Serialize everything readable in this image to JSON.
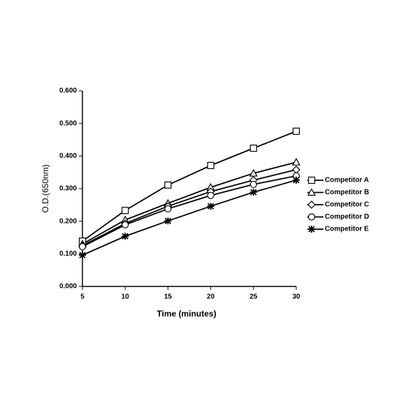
{
  "chart_data": {
    "type": "line",
    "x_label": "Time (minutes)",
    "y_label": "O.D.(650nm)",
    "x": [
      5,
      10,
      15,
      20,
      25,
      30
    ],
    "xlim": [
      5,
      30
    ],
    "xticks": [
      5,
      10,
      15,
      20,
      25,
      30
    ],
    "ylim": [
      0,
      0.6
    ],
    "yticks": [
      {
        "value": 0,
        "label": "0.000"
      },
      {
        "value": 0.1,
        "label": "0.100"
      },
      {
        "value": 0.2,
        "label": "0.200"
      },
      {
        "value": 0.3,
        "label": "0.300"
      },
      {
        "value": 0.4,
        "label": "0.400"
      },
      {
        "value": 0.5,
        "label": "0.500"
      },
      {
        "value": 0.6,
        "label": "0.600"
      }
    ],
    "legend": "right",
    "series": [
      {
        "name": "Competitor A",
        "color": "#000000",
        "marker": "square",
        "values": [
          0.139,
          0.233,
          0.311,
          0.371,
          0.424,
          0.476
        ]
      },
      {
        "name": "Competitor B",
        "color": "#000000",
        "marker": "triangle",
        "values": [
          0.13,
          0.204,
          0.255,
          0.304,
          0.347,
          0.381
        ]
      },
      {
        "name": "Competitor C",
        "color": "#000000",
        "marker": "diamond",
        "values": [
          0.125,
          0.193,
          0.246,
          0.291,
          0.326,
          0.358
        ]
      },
      {
        "name": "Competitor D",
        "color": "#000000",
        "marker": "circle",
        "values": [
          0.122,
          0.189,
          0.238,
          0.279,
          0.313,
          0.339
        ]
      },
      {
        "name": "Competitor E",
        "color": "#000000",
        "marker": "asterisk",
        "values": [
          0.096,
          0.154,
          0.201,
          0.246,
          0.289,
          0.326
        ]
      }
    ]
  }
}
